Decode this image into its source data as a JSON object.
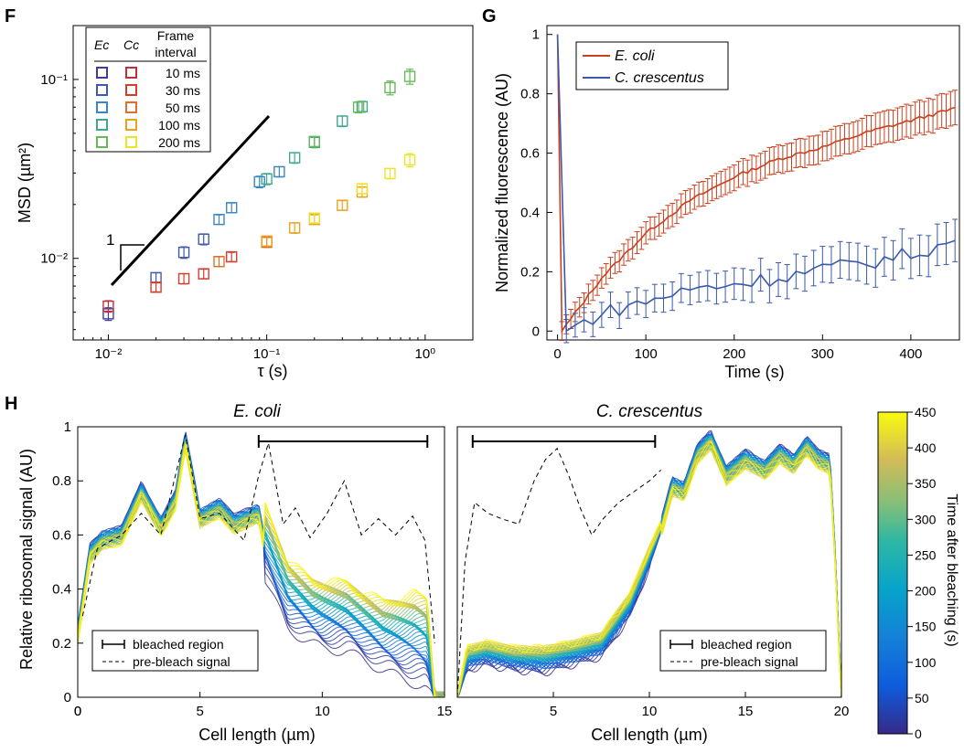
{
  "panels": {
    "F": {
      "letter": "F",
      "chart_data": {
        "type": "scatter",
        "xscale": "log",
        "yscale": "log",
        "xlabel": "τ (s)",
        "ylabel": "MSD (µm²)",
        "xlim": [
          0.006,
          2
        ],
        "ylim": [
          0.0035,
          0.2
        ],
        "xticks": [
          {
            "v": 0.01,
            "label": "10⁻²"
          },
          {
            "v": 0.1,
            "label": "10⁻¹"
          },
          {
            "v": 1,
            "label": "10⁰"
          }
        ],
        "yticks": [
          {
            "v": 0.01,
            "label": "10⁻²"
          },
          {
            "v": 0.1,
            "label": "10⁻¹"
          }
        ],
        "legend": {
          "headers": [
            "Ec",
            "Cc",
            "Frame",
            "interval"
          ],
          "entries": [
            {
              "label": "10 ms",
              "ec_color": "#3d3f93",
              "cc_color": "#c0303b"
            },
            {
              "label": "30 ms",
              "ec_color": "#3f5aa8",
              "cc_color": "#d43d2e"
            },
            {
              "label": "50 ms",
              "ec_color": "#3b86c4",
              "cc_color": "#e07028"
            },
            {
              "label": "100 ms",
              "ec_color": "#3fa890",
              "cc_color": "#eaa21d"
            },
            {
              "label": "200 ms",
              "ec_color": "#66b85a",
              "cc_color": "#ece42a"
            }
          ]
        },
        "slope_label": "1",
        "series": [
          {
            "group": "Ec",
            "interval": "10 ms",
            "color": "#3d3f93",
            "x": [
              0.01
            ],
            "y": [
              0.0049
            ],
            "err": [
              0.0004
            ]
          },
          {
            "group": "Ec",
            "interval": "30 ms",
            "color": "#3f5aa8",
            "x": [
              0.02,
              0.03,
              0.04
            ],
            "y": [
              0.0078,
              0.0108,
              0.0128
            ],
            "err": [
              0.0005,
              0.0008,
              0.0009
            ]
          },
          {
            "group": "Ec",
            "interval": "50 ms",
            "color": "#3b86c4",
            "x": [
              0.05,
              0.06,
              0.09,
              0.12
            ],
            "y": [
              0.0165,
              0.0192,
              0.0268,
              0.0305
            ],
            "err": [
              0.001,
              0.0012,
              0.002,
              0.002
            ]
          },
          {
            "group": "Ec",
            "interval": "100 ms",
            "color": "#3fa890",
            "x": [
              0.1,
              0.15,
              0.2,
              0.3,
              0.4
            ],
            "y": [
              0.0278,
              0.0365,
              0.0445,
              0.0585,
              0.0705
            ],
            "err": [
              0.002,
              0.0025,
              0.003,
              0.004,
              0.005
            ]
          },
          {
            "group": "Ec",
            "interval": "200 ms",
            "color": "#66b85a",
            "x": [
              0.2,
              0.38,
              0.6,
              0.8
            ],
            "y": [
              0.045,
              0.07,
              0.09,
              0.104
            ],
            "err": [
              0.003,
              0.005,
              0.008,
              0.01
            ]
          },
          {
            "group": "Cc",
            "interval": "10 ms",
            "color": "#c0303b",
            "x": [
              0.01
            ],
            "y": [
              0.0054
            ],
            "err": [
              0.0004
            ]
          },
          {
            "group": "Cc",
            "interval": "30 ms",
            "color": "#d43d2e",
            "x": [
              0.02,
              0.03,
              0.04,
              0.06
            ],
            "y": [
              0.0069,
              0.0077,
              0.0082,
              0.0102
            ],
            "err": [
              0.0004,
              0.0005,
              0.0005,
              0.0006
            ]
          },
          {
            "group": "Cc",
            "interval": "50 ms",
            "color": "#e07028",
            "x": [
              0.05,
              0.1
            ],
            "y": [
              0.0096,
              0.0123
            ],
            "err": [
              0.0006,
              0.0008
            ]
          },
          {
            "group": "Cc",
            "interval": "100 ms",
            "color": "#eaa21d",
            "x": [
              0.1,
              0.15,
              0.2,
              0.3,
              0.4
            ],
            "y": [
              0.0125,
              0.0148,
              0.0165,
              0.0198,
              0.0235
            ],
            "err": [
              0.0008,
              0.001,
              0.001,
              0.0012,
              0.0015
            ]
          },
          {
            "group": "Cc",
            "interval": "200 ms",
            "color": "#ece42a",
            "x": [
              0.2,
              0.4,
              0.6,
              0.8
            ],
            "y": [
              0.0168,
              0.0245,
              0.0298,
              0.0355
            ],
            "err": [
              0.001,
              0.0015,
              0.002,
              0.003
            ]
          }
        ]
      }
    },
    "G": {
      "letter": "G",
      "chart_data": {
        "type": "line",
        "xlabel": "Time (s)",
        "ylabel": "Normalized fluorescence (AU)",
        "xlim": [
          -12,
          455
        ],
        "ylim": [
          -0.03,
          1.03
        ],
        "xticks": [
          0,
          100,
          200,
          300,
          400
        ],
        "yticks": [
          0,
          0.2,
          0.4,
          0.6,
          0.8,
          1
        ],
        "ytick_labels": [
          "0",
          "0.2",
          "0.4",
          "0.6",
          "0.8",
          "1"
        ],
        "legend_position": "top-left",
        "series": [
          {
            "name": "E. coli",
            "color": "#c9401e",
            "prebleach": [
              [
                0,
                1
              ]
            ],
            "t0": 5,
            "t1": 450,
            "dt": 5,
            "curve": [
              [
                5,
                0.0
              ],
              [
                25,
                0.08
              ],
              [
                50,
                0.18
              ],
              [
                100,
                0.33
              ],
              [
                150,
                0.44
              ],
              [
                200,
                0.52
              ],
              [
                250,
                0.58
              ],
              [
                300,
                0.62
              ],
              [
                350,
                0.67
              ],
              [
                400,
                0.71
              ],
              [
                450,
                0.75
              ]
            ],
            "err": 0.045
          },
          {
            "name": "C. crescentus",
            "color": "#3a5aa9",
            "prebleach": [
              [
                0,
                1
              ]
            ],
            "t0": 10,
            "t1": 450,
            "dt": 10,
            "curve": [
              [
                10,
                0.0
              ],
              [
                50,
                0.06
              ],
              [
                100,
                0.1
              ],
              [
                150,
                0.14
              ],
              [
                200,
                0.16
              ],
              [
                250,
                0.18
              ],
              [
                300,
                0.21
              ],
              [
                350,
                0.23
              ],
              [
                400,
                0.26
              ],
              [
                450,
                0.3
              ]
            ],
            "err": 0.055
          }
        ]
      }
    },
    "H": {
      "letter": "H",
      "ylabel": "Relative ribosomal signal (AU)",
      "yticks": [
        0,
        0.2,
        0.4,
        0.6,
        0.8,
        1
      ],
      "ytick_labels": [
        "0",
        "0.2",
        "0.4",
        "0.6",
        "0.8",
        "1"
      ],
      "legend_bleached": "bleached region",
      "legend_prebleach": "pre-bleach signal",
      "colorbar": {
        "label": "Time after bleaching (s)",
        "min": 0,
        "max": 450,
        "ticks": [
          0,
          50,
          100,
          150,
          200,
          250,
          300,
          350,
          400,
          450
        ]
      },
      "subplots": [
        {
          "title": "E. coli",
          "xlabel": "Cell length (µm)",
          "xlim": [
            0,
            15
          ],
          "xticks": [
            0,
            5,
            10,
            15
          ],
          "bleached_region": [
            7.4,
            14.3
          ],
          "chart_data": {
            "type": "line",
            "n_traces": 45,
            "time_range": [
              0,
              450
            ],
            "prebleach": [
              [
                0.2,
                0.3
              ],
              [
                0.8,
                0.55
              ],
              [
                1.8,
                0.6
              ],
              [
                2.6,
                0.68
              ],
              [
                3.4,
                0.6
              ],
              [
                4.4,
                0.97
              ],
              [
                5.0,
                0.66
              ],
              [
                5.8,
                0.68
              ],
              [
                6.8,
                0.58
              ],
              [
                7.4,
                0.82
              ],
              [
                7.8,
                0.94
              ],
              [
                8.4,
                0.64
              ],
              [
                8.9,
                0.7
              ],
              [
                9.5,
                0.59
              ],
              [
                10.2,
                0.68
              ],
              [
                10.9,
                0.8
              ],
              [
                11.6,
                0.6
              ],
              [
                12.3,
                0.66
              ],
              [
                13.0,
                0.6
              ],
              [
                13.7,
                0.67
              ],
              [
                14.2,
                0.58
              ],
              [
                14.6,
                0.2
              ]
            ],
            "unbleached_profile": [
              [
                0.0,
                0.25
              ],
              [
                0.5,
                0.55
              ],
              [
                1.0,
                0.6
              ],
              [
                1.8,
                0.62
              ],
              [
                2.6,
                0.78
              ],
              [
                3.4,
                0.65
              ],
              [
                4.0,
                0.75
              ],
              [
                4.4,
                0.97
              ],
              [
                5.0,
                0.68
              ],
              [
                5.8,
                0.72
              ],
              [
                6.4,
                0.66
              ],
              [
                7.4,
                0.7
              ],
              [
                7.6,
                0.6
              ]
            ],
            "bleached_start": [
              [
                7.6,
                0.45
              ],
              [
                8.6,
                0.25
              ],
              [
                10.0,
                0.18
              ],
              [
                11.0,
                0.17
              ],
              [
                12.5,
                0.1
              ],
              [
                13.5,
                0.06
              ],
              [
                14.2,
                0.04
              ],
              [
                14.5,
                0.0
              ]
            ],
            "bleached_end": [
              [
                7.6,
                0.72
              ],
              [
                8.6,
                0.5
              ],
              [
                9.6,
                0.43
              ],
              [
                11.0,
                0.42
              ],
              [
                12.5,
                0.35
              ],
              [
                13.8,
                0.38
              ],
              [
                14.3,
                0.36
              ],
              [
                14.6,
                0.0
              ]
            ]
          }
        },
        {
          "title": "C. crescentus",
          "xlabel": "Cell length (µm)",
          "xlim": [
            0,
            20
          ],
          "xticks": [
            5,
            10,
            15,
            20
          ],
          "bleached_region": [
            0.8,
            10.3
          ],
          "chart_data": {
            "type": "line",
            "n_traces": 45,
            "time_range": [
              0,
              450
            ],
            "prebleach": [
              [
                0.0,
                0.0
              ],
              [
                0.4,
                0.5
              ],
              [
                0.9,
                0.72
              ],
              [
                1.6,
                0.68
              ],
              [
                2.3,
                0.66
              ],
              [
                3.2,
                0.64
              ],
              [
                4.0,
                0.8
              ],
              [
                4.6,
                0.88
              ],
              [
                5.2,
                0.92
              ],
              [
                5.8,
                0.82
              ],
              [
                6.4,
                0.7
              ],
              [
                7.0,
                0.6
              ],
              [
                7.6,
                0.66
              ],
              [
                8.4,
                0.72
              ],
              [
                9.2,
                0.76
              ],
              [
                10.0,
                0.8
              ],
              [
                10.6,
                0.84
              ]
            ],
            "bleached_start": [
              [
                0.0,
                0.0
              ],
              [
                0.5,
                0.1
              ],
              [
                1.5,
                0.12
              ],
              [
                3.0,
                0.1
              ],
              [
                4.5,
                0.09
              ],
              [
                6.0,
                0.12
              ],
              [
                7.5,
                0.15
              ],
              [
                9.0,
                0.3
              ],
              [
                10.0,
                0.48
              ],
              [
                10.6,
                0.62
              ]
            ],
            "bleached_end": [
              [
                0.0,
                0.0
              ],
              [
                0.5,
                0.18
              ],
              [
                1.5,
                0.2
              ],
              [
                3.0,
                0.18
              ],
              [
                4.5,
                0.18
              ],
              [
                6.0,
                0.2
              ],
              [
                7.5,
                0.23
              ],
              [
                9.0,
                0.38
              ],
              [
                10.0,
                0.55
              ],
              [
                10.6,
                0.64
              ]
            ],
            "unbleached_profile": [
              [
                10.6,
                0.64
              ],
              [
                11.2,
                0.8
              ],
              [
                11.8,
                0.78
              ],
              [
                12.5,
                0.92
              ],
              [
                13.2,
                0.97
              ],
              [
                14.0,
                0.84
              ],
              [
                15.0,
                0.9
              ],
              [
                16.0,
                0.86
              ],
              [
                16.8,
                0.92
              ],
              [
                17.5,
                0.88
              ],
              [
                18.2,
                0.95
              ],
              [
                18.8,
                0.9
              ],
              [
                19.4,
                0.88
              ],
              [
                19.7,
                0.5
              ],
              [
                20.0,
                0.0
              ]
            ]
          }
        }
      ]
    }
  }
}
